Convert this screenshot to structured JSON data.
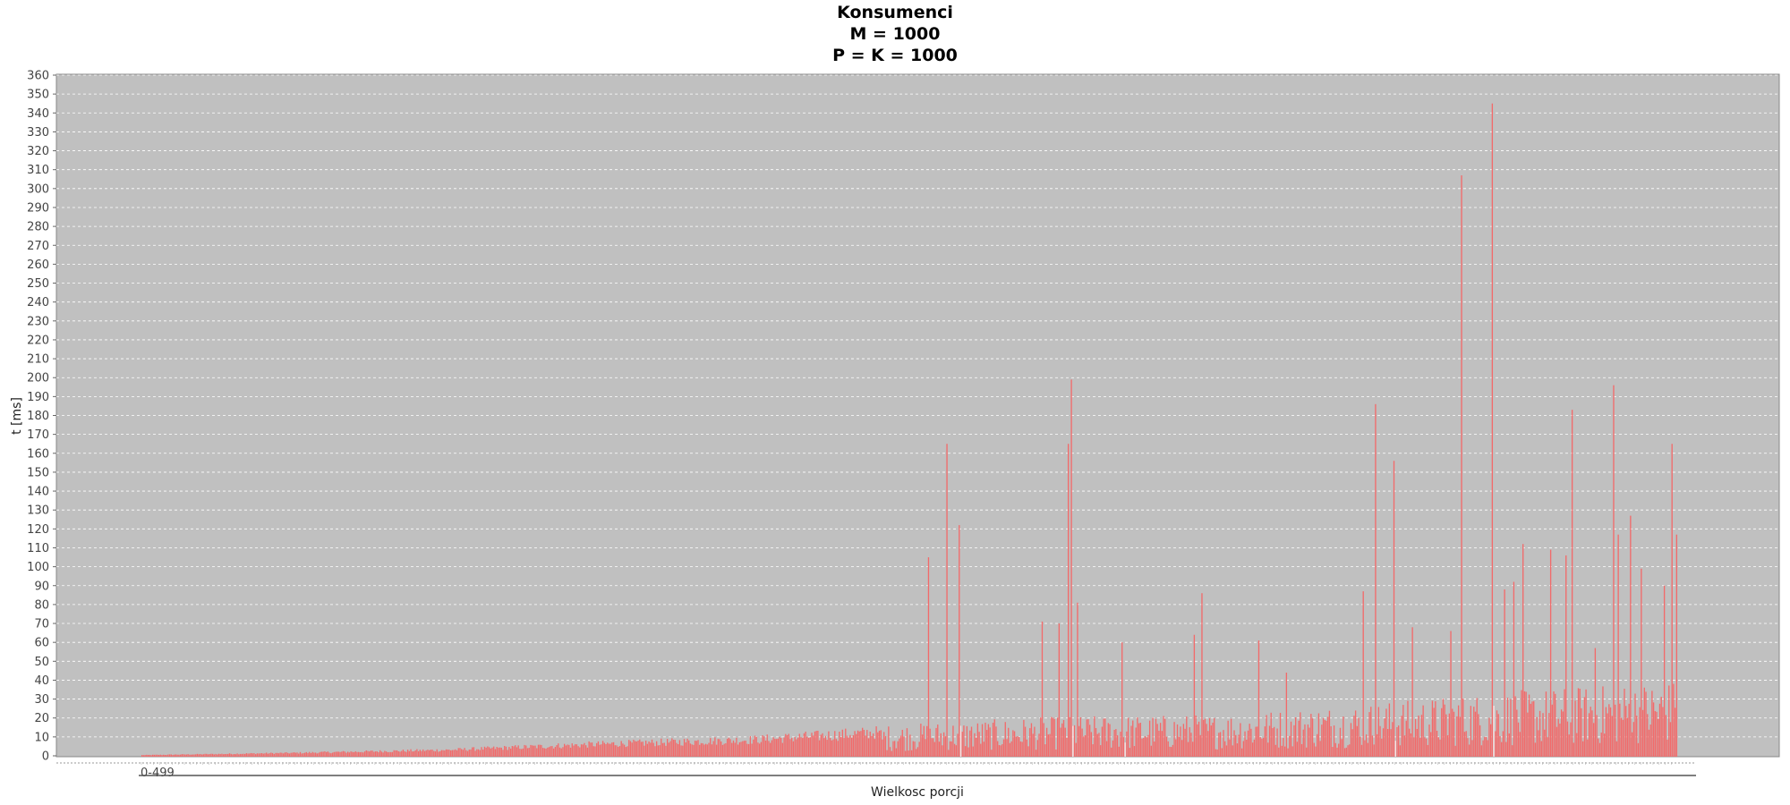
{
  "chart_data": {
    "type": "bar",
    "title": [
      "Konsumenci",
      "M = 1000",
      "P = K = 1000"
    ],
    "xlabel": "Wielkosc porcji",
    "ylabel": "t [ms]",
    "x_first_tick_label": "0-499",
    "categories_range": [
      0,
      999
    ],
    "ylim": [
      0,
      360
    ],
    "y_ticks": [
      0,
      10,
      20,
      30,
      40,
      50,
      60,
      70,
      80,
      90,
      100,
      110,
      120,
      130,
      140,
      150,
      160,
      170,
      180,
      190,
      200,
      210,
      220,
      230,
      240,
      250,
      260,
      270,
      280,
      290,
      300,
      310,
      320,
      330,
      340,
      350,
      360
    ],
    "grid": true,
    "legend": "none",
    "colors": {
      "bar": "#f26a6a",
      "plot_bg": "#c0c0c0",
      "grid": "#ffffff",
      "highlight_bar": "#fbe3e3"
    },
    "envelope": [
      [
        0,
        0.5
      ],
      [
        100,
        2
      ],
      [
        200,
        4
      ],
      [
        300,
        8
      ],
      [
        400,
        11
      ],
      [
        480,
        16
      ],
      [
        520,
        18
      ],
      [
        600,
        21
      ],
      [
        700,
        22
      ],
      [
        800,
        28
      ],
      [
        900,
        35
      ],
      [
        999,
        40
      ]
    ],
    "peaks": [
      [
        512,
        105
      ],
      [
        524,
        165
      ],
      [
        532,
        122
      ],
      [
        586,
        71
      ],
      [
        597,
        70
      ],
      [
        603,
        165
      ],
      [
        605,
        199
      ],
      [
        609,
        81
      ],
      [
        638,
        60
      ],
      [
        685,
        64
      ],
      [
        690,
        86
      ],
      [
        727,
        61
      ],
      [
        745,
        44
      ],
      [
        795,
        87
      ],
      [
        803,
        186
      ],
      [
        815,
        156
      ],
      [
        827,
        68
      ],
      [
        852,
        66
      ],
      [
        859,
        307
      ],
      [
        879,
        345
      ],
      [
        887,
        88
      ],
      [
        893,
        92
      ],
      [
        899,
        112
      ],
      [
        917,
        109
      ],
      [
        927,
        106
      ],
      [
        931,
        183
      ],
      [
        946,
        57
      ],
      [
        958,
        196
      ],
      [
        961,
        117
      ],
      [
        969,
        127
      ],
      [
        976,
        99
      ],
      [
        991,
        90
      ],
      [
        996,
        165
      ],
      [
        1000,
        87
      ],
      [
        1004,
        72
      ],
      [
        1012,
        57
      ],
      [
        1018,
        132
      ],
      [
        1022,
        65
      ],
      [
        1034,
        52
      ],
      [
        1037,
        145
      ],
      [
        1046,
        108
      ],
      [
        1049,
        81
      ],
      [
        1064,
        48
      ],
      [
        1067,
        146
      ],
      [
        1070,
        94
      ],
      [
        1079,
        45
      ],
      [
        1086,
        92
      ],
      [
        1095,
        90
      ],
      [
        1098,
        117
      ]
    ],
    "series": [
      {
        "values_note_hidden": false
      }
    ]
  }
}
